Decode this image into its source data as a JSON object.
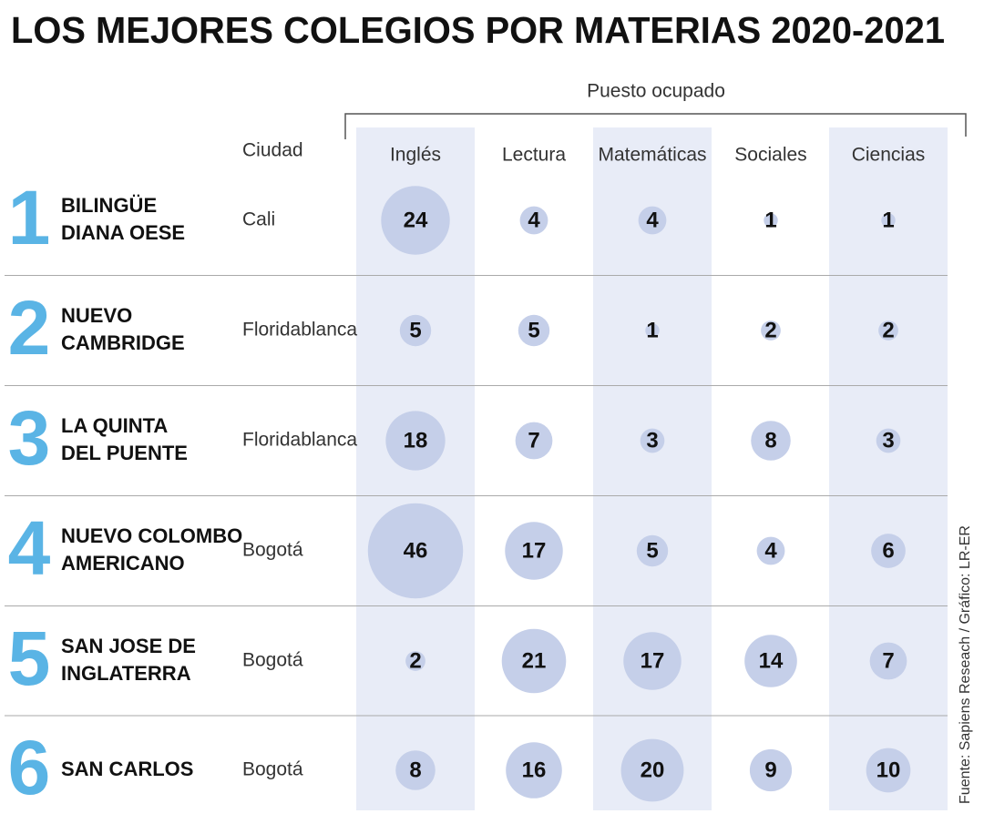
{
  "title": "LOS MEJORES COLEGIOS POR MATERIAS 2020-2021",
  "group_label": "Puesto ocupado",
  "city_header": "Ciudad",
  "subjects": [
    "Inglés",
    "Lectura",
    "Matemáticas",
    "Sociales",
    "Ciencias"
  ],
  "rows": [
    {
      "rank": 1,
      "school": [
        "BILINGÜE",
        "DIANA OESE"
      ],
      "city": "Cali",
      "values": [
        24,
        4,
        4,
        1,
        1
      ]
    },
    {
      "rank": 2,
      "school": [
        "NUEVO",
        "CAMBRIDGE"
      ],
      "city": "Floridablanca",
      "values": [
        5,
        5,
        1,
        2,
        2
      ]
    },
    {
      "rank": 3,
      "school": [
        "LA QUINTA",
        "DEL PUENTE"
      ],
      "city": "Floridablanca",
      "values": [
        18,
        7,
        3,
        8,
        3
      ]
    },
    {
      "rank": 4,
      "school": [
        "NUEVO COLOMBO",
        "AMERICANO"
      ],
      "city": "Bogotá",
      "values": [
        46,
        17,
        5,
        4,
        6
      ]
    },
    {
      "rank": 5,
      "school": [
        "SAN JOSE DE",
        "INGLATERRA"
      ],
      "city": "Bogotá",
      "values": [
        2,
        21,
        17,
        14,
        7
      ]
    },
    {
      "rank": 6,
      "school": [
        "SAN CARLOS"
      ],
      "city": "Bogotá",
      "values": [
        8,
        16,
        20,
        9,
        10
      ]
    }
  ],
  "source": "Fuente: Sapiens Reseach / Gráfico: LR-ER"
}
